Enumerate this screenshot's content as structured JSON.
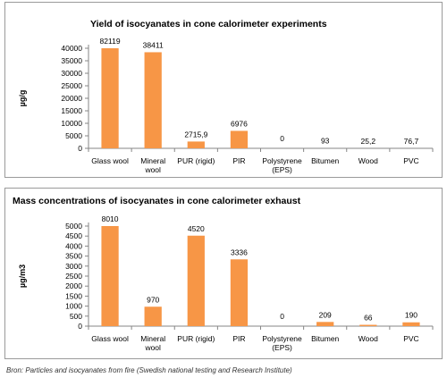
{
  "charts_meta": {
    "bar_color": "#f79646",
    "axis_color": "#868686",
    "text_color": "#000000"
  },
  "caption": "Bron: Particles and isocyanates from fire (Swedish national testing and Research Institute)",
  "chart_data": [
    {
      "type": "bar",
      "title": "Yield of isocyanates in cone calorimeter experiments",
      "ylabel": "µg/g",
      "xlabel": "",
      "ylim": [
        0,
        40000
      ],
      "yticks": [
        0,
        5000,
        10000,
        15000,
        20000,
        25000,
        30000,
        35000,
        40000
      ],
      "grid": false,
      "categories": [
        [
          "Glass wool"
        ],
        [
          "Mineral",
          "wool"
        ],
        [
          "PUR (rigid)"
        ],
        [
          "PIR"
        ],
        [
          "Polystyrene",
          "(EPS)"
        ],
        [
          "Bitumen"
        ],
        [
          "Wood"
        ],
        [
          "PVC"
        ]
      ],
      "values": [
        82119,
        38411,
        2715.9,
        6976,
        0,
        93,
        25.2,
        76.7
      ],
      "value_labels": [
        "82119",
        "38411",
        "2715,9",
        "6976",
        "0",
        "93",
        "25,2",
        "76,7"
      ]
    },
    {
      "type": "bar",
      "title": "Mass concentrations of isocyanates in cone calorimeter exhaust",
      "ylabel": "µg/m3",
      "xlabel": "",
      "ylim": [
        0,
        5000
      ],
      "yticks": [
        0,
        500,
        1000,
        1500,
        2000,
        2500,
        3000,
        3500,
        4000,
        4500,
        5000
      ],
      "grid": false,
      "categories": [
        [
          "Glass wool"
        ],
        [
          "Mineral",
          "wool"
        ],
        [
          "PUR (rigid)"
        ],
        [
          "PIR"
        ],
        [
          "Polystyrene",
          "(EPS)"
        ],
        [
          "Bitumen"
        ],
        [
          "Wood"
        ],
        [
          "PVC"
        ]
      ],
      "values": [
        8010,
        970,
        4520,
        3336,
        0,
        209,
        66,
        190
      ],
      "value_labels": [
        "8010",
        "970",
        "4520",
        "3336",
        "0",
        "209",
        "66",
        "190"
      ]
    }
  ]
}
